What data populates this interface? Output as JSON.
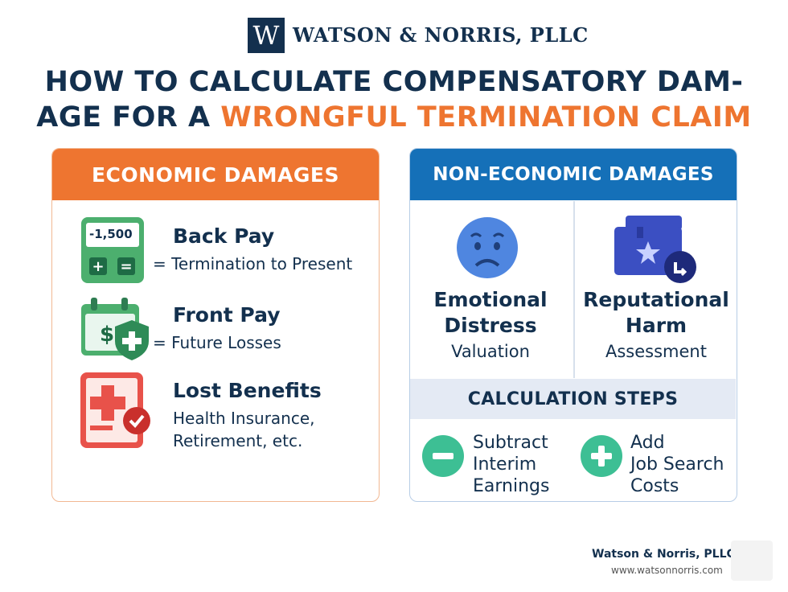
{
  "header": {
    "logo_letter": "W",
    "firm_name": "WATSON & NORRIS, PLLC",
    "title_line1": "HOW TO CALCULATE COMPENSATORY DAM-",
    "title_line2_plain": "AGE FOR A ",
    "title_line2_accent": "WRONGFUL TERMINATION CLAIM"
  },
  "economic": {
    "heading": "ECONOMIC DAMAGES",
    "calculator_display": "-1,500",
    "items": [
      {
        "title": "Back Pay",
        "desc": "= Termination to Present"
      },
      {
        "title": "Front Pay",
        "desc": "= Future Losses"
      },
      {
        "title": "Lost Benefits",
        "desc_line1": "Health Insurance,",
        "desc_line2": "Retirement, etc."
      }
    ]
  },
  "non_economic": {
    "heading": "NON-ECONOMIC DAMAGES",
    "emotional": {
      "line1": "Emotional",
      "line2": "Distress",
      "sub": "Valuation"
    },
    "reputational": {
      "line1": "Reputational",
      "line2": "Harm",
      "sub": "Assessment"
    }
  },
  "steps": {
    "heading": "CALCULATION STEPS",
    "subtract": {
      "line1": "Subtract",
      "line2": "Interim",
      "line3": "Earnings"
    },
    "add": {
      "line1": "Add",
      "line2": "Job Search",
      "line3": "Costs"
    }
  },
  "footer": {
    "name": "Watson & Norris, PLLC",
    "url": "www.watsonnorris.com"
  },
  "colors": {
    "navy": "#13304e",
    "orange": "#ee7530",
    "blue": "#1570b8",
    "green": "#3dbf94",
    "red": "#e8524a"
  }
}
